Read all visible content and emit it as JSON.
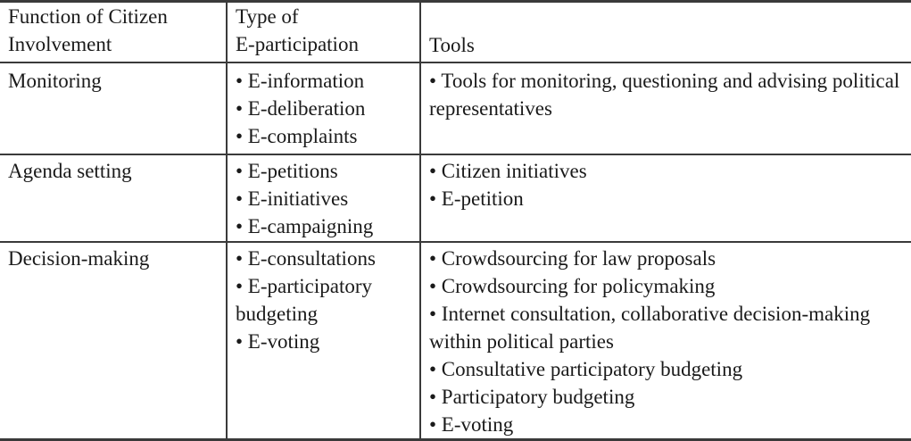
{
  "table": {
    "headers": {
      "function": [
        "Function of Citizen",
        "Involvement"
      ],
      "type": [
        "Type of",
        "E-participation"
      ],
      "tools": "Tools"
    },
    "rows": [
      {
        "function": "Monitoring",
        "types": [
          "• E-information",
          "• E-deliberation",
          "• E-complaints"
        ],
        "tools": [
          "• Tools for monitoring, questioning and advising political representatives"
        ]
      },
      {
        "function": "Agenda setting",
        "types": [
          "• E-petitions",
          "• E-initiatives",
          "• E-campaigning"
        ],
        "tools": [
          "• Citizen initiatives",
          "• E-petition"
        ]
      },
      {
        "function": "Decision-making",
        "types": [
          "• E-consultations",
          "• E-participatory budgeting",
          "• E-voting"
        ],
        "tools": [
          "• Crowdsourcing for law proposals",
          "• Crowdsourcing for policymaking",
          "• Internet consultation, collaborative decision-making within political parties",
          "• Consultative participatory budgeting",
          "• Participatory budgeting",
          "• E-voting"
        ]
      }
    ]
  }
}
